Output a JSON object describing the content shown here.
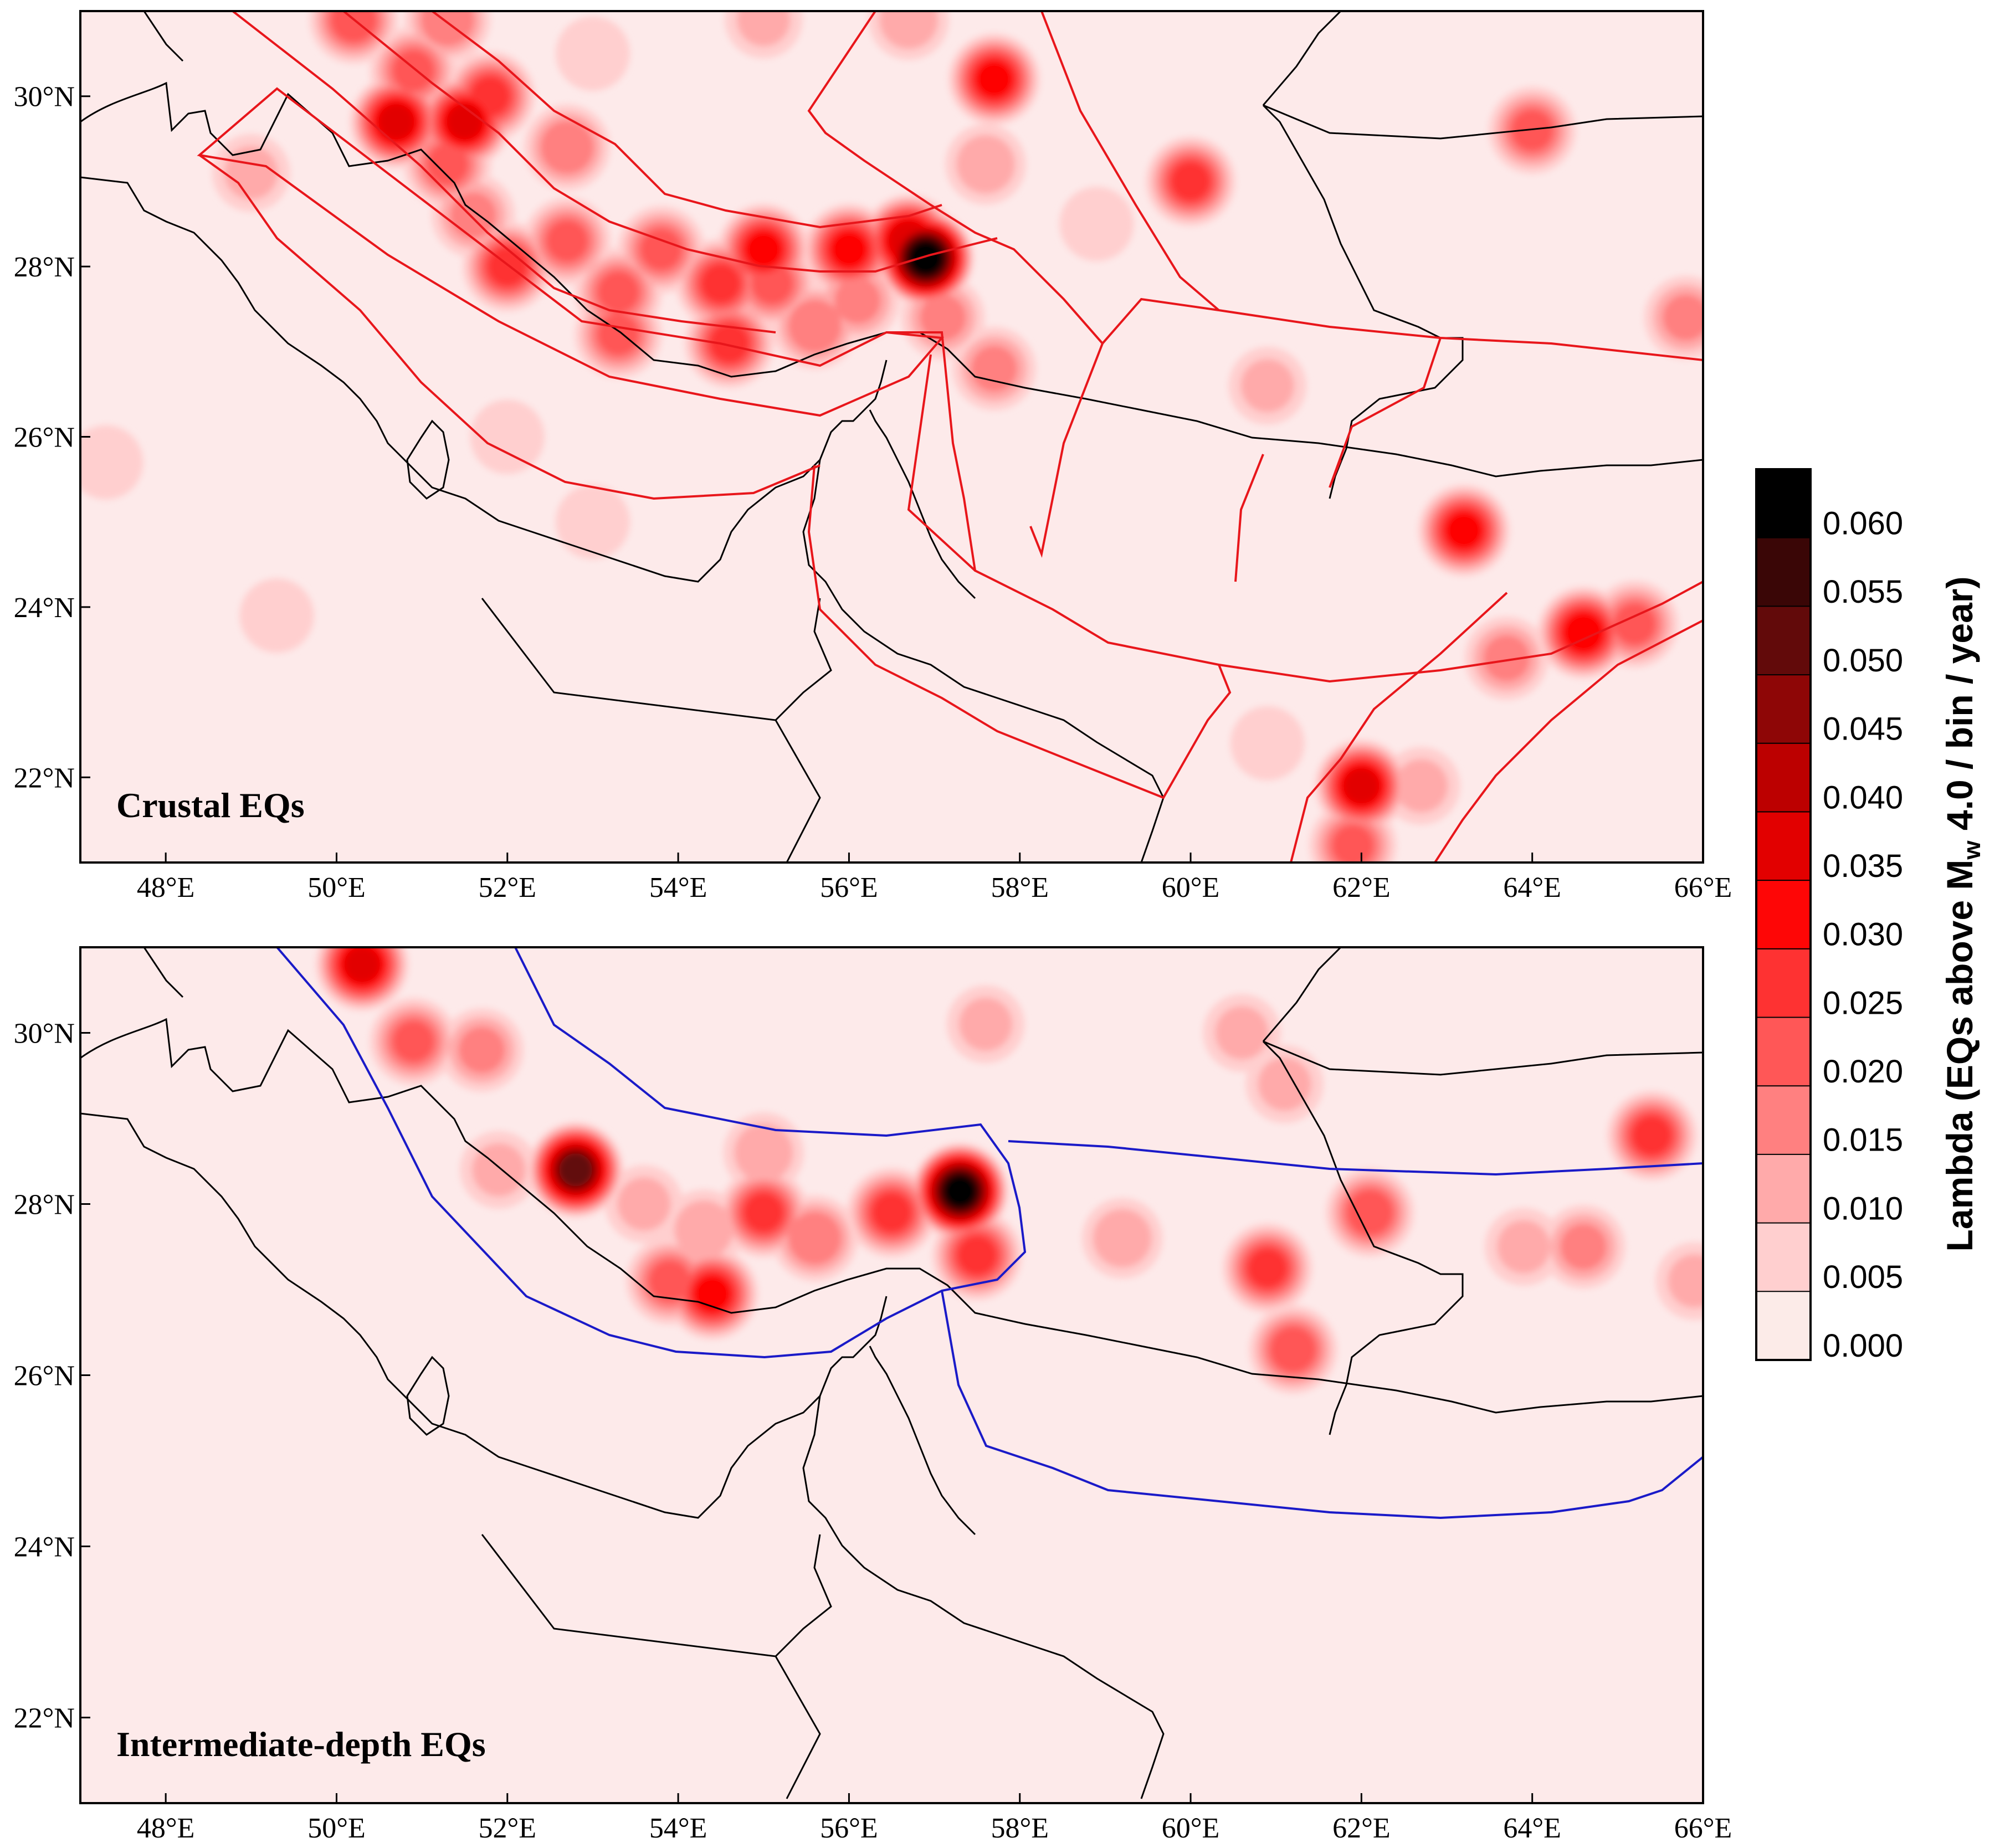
{
  "panels": [
    {
      "title": "Crustal EQs",
      "zone_color": "#e8161b"
    },
    {
      "title": "Intermediate-depth EQs",
      "zone_color": "#1a1ac8"
    }
  ],
  "axes": {
    "x_ticks": [
      "48°E",
      "50°E",
      "52°E",
      "54°E",
      "56°E",
      "58°E",
      "60°E",
      "62°E",
      "64°E",
      "66°E"
    ],
    "y_ticks": [
      "30°N",
      "28°N",
      "26°N",
      "24°N",
      "22°N"
    ]
  },
  "colorbar": {
    "title_prefix": "Lambda (EQs above M",
    "title_sub": "w",
    "title_suffix": " 4.0 / bin / year)",
    "tick_labels": [
      "0.060",
      "0.055",
      "0.050",
      "0.045",
      "0.040",
      "0.035",
      "0.030",
      "0.025",
      "0.020",
      "0.015",
      "0.010",
      "0.005",
      "0.000"
    ],
    "colors": [
      "#000000",
      "#3a0606",
      "#620a0a",
      "#8e0606",
      "#bc0000",
      "#e20000",
      "#fe0606",
      "#fe3232",
      "#ff5757",
      "#ff8080",
      "#ffaaaa",
      "#ffcfcf",
      "#fcebe8"
    ]
  },
  "map_background": "#fdeaea",
  "coast_color": "#000000",
  "hotspots": {
    "crustal": [
      {
        "lon": 56.9,
        "lat": 28.1,
        "val": 0.062
      },
      {
        "lon": 56.7,
        "lat": 28.3,
        "val": 0.038
      },
      {
        "lon": 55.0,
        "lat": 28.2,
        "val": 0.03
      },
      {
        "lon": 56.0,
        "lat": 28.2,
        "val": 0.03
      },
      {
        "lon": 54.5,
        "lat": 27.8,
        "val": 0.025
      },
      {
        "lon": 53.8,
        "lat": 28.2,
        "val": 0.02
      },
      {
        "lon": 53.3,
        "lat": 27.7,
        "val": 0.02
      },
      {
        "lon": 52.7,
        "lat": 28.3,
        "val": 0.02
      },
      {
        "lon": 52.0,
        "lat": 28.0,
        "val": 0.025
      },
      {
        "lon": 54.6,
        "lat": 27.1,
        "val": 0.025
      },
      {
        "lon": 53.3,
        "lat": 27.2,
        "val": 0.02
      },
      {
        "lon": 55.6,
        "lat": 27.3,
        "val": 0.018
      },
      {
        "lon": 55.1,
        "lat": 27.8,
        "val": 0.02
      },
      {
        "lon": 56.1,
        "lat": 27.6,
        "val": 0.015
      },
      {
        "lon": 51.5,
        "lat": 29.7,
        "val": 0.035
      },
      {
        "lon": 50.7,
        "lat": 29.7,
        "val": 0.035
      },
      {
        "lon": 51.8,
        "lat": 30.0,
        "val": 0.025
      },
      {
        "lon": 50.9,
        "lat": 30.3,
        "val": 0.02
      },
      {
        "lon": 51.3,
        "lat": 29.2,
        "val": 0.02
      },
      {
        "lon": 52.7,
        "lat": 29.4,
        "val": 0.018
      },
      {
        "lon": 50.2,
        "lat": 30.9,
        "val": 0.022
      },
      {
        "lon": 51.3,
        "lat": 30.9,
        "val": 0.018
      },
      {
        "lon": 51.6,
        "lat": 28.6,
        "val": 0.015
      },
      {
        "lon": 57.7,
        "lat": 30.2,
        "val": 0.03
      },
      {
        "lon": 57.6,
        "lat": 29.2,
        "val": 0.012
      },
      {
        "lon": 60.0,
        "lat": 29.0,
        "val": 0.025
      },
      {
        "lon": 62.0,
        "lat": 21.9,
        "val": 0.035
      },
      {
        "lon": 61.9,
        "lat": 21.2,
        "val": 0.02
      },
      {
        "lon": 63.2,
        "lat": 24.9,
        "val": 0.03
      },
      {
        "lon": 64.6,
        "lat": 23.7,
        "val": 0.032
      },
      {
        "lon": 65.2,
        "lat": 23.8,
        "val": 0.02
      },
      {
        "lon": 63.7,
        "lat": 23.4,
        "val": 0.015
      },
      {
        "lon": 64.0,
        "lat": 29.6,
        "val": 0.02
      },
      {
        "lon": 65.8,
        "lat": 27.4,
        "val": 0.015
      },
      {
        "lon": 57.7,
        "lat": 26.8,
        "val": 0.015
      },
      {
        "lon": 57.1,
        "lat": 27.4,
        "val": 0.015
      },
      {
        "lon": 49.0,
        "lat": 29.1,
        "val": 0.01
      },
      {
        "lon": 47.3,
        "lat": 25.7,
        "val": 0.008
      },
      {
        "lon": 49.3,
        "lat": 23.9,
        "val": 0.008
      },
      {
        "lon": 52.0,
        "lat": 26.0,
        "val": 0.008
      },
      {
        "lon": 53.0,
        "lat": 25.0,
        "val": 0.008
      },
      {
        "lon": 58.9,
        "lat": 28.5,
        "val": 0.008
      },
      {
        "lon": 60.9,
        "lat": 26.6,
        "val": 0.01
      },
      {
        "lon": 62.7,
        "lat": 21.9,
        "val": 0.01
      },
      {
        "lon": 60.9,
        "lat": 22.4,
        "val": 0.008
      },
      {
        "lon": 56.7,
        "lat": 30.9,
        "val": 0.012
      },
      {
        "lon": 55.0,
        "lat": 30.9,
        "val": 0.01
      },
      {
        "lon": 53.0,
        "lat": 30.5,
        "val": 0.008
      }
    ],
    "intermediate": [
      {
        "lon": 57.3,
        "lat": 28.15,
        "val": 0.06
      },
      {
        "lon": 52.8,
        "lat": 28.4,
        "val": 0.05
      },
      {
        "lon": 56.5,
        "lat": 27.9,
        "val": 0.025
      },
      {
        "lon": 54.4,
        "lat": 26.95,
        "val": 0.03
      },
      {
        "lon": 53.9,
        "lat": 27.1,
        "val": 0.02
      },
      {
        "lon": 55.0,
        "lat": 27.9,
        "val": 0.025
      },
      {
        "lon": 55.6,
        "lat": 27.6,
        "val": 0.018
      },
      {
        "lon": 57.5,
        "lat": 27.4,
        "val": 0.025
      },
      {
        "lon": 50.3,
        "lat": 30.8,
        "val": 0.035
      },
      {
        "lon": 50.9,
        "lat": 29.9,
        "val": 0.02
      },
      {
        "lon": 51.7,
        "lat": 29.8,
        "val": 0.015
      },
      {
        "lon": 60.9,
        "lat": 27.25,
        "val": 0.025
      },
      {
        "lon": 61.2,
        "lat": 26.3,
        "val": 0.022
      },
      {
        "lon": 62.1,
        "lat": 27.9,
        "val": 0.022
      },
      {
        "lon": 65.4,
        "lat": 28.8,
        "val": 0.025
      },
      {
        "lon": 64.6,
        "lat": 27.5,
        "val": 0.015
      },
      {
        "lon": 59.2,
        "lat": 27.6,
        "val": 0.012
      },
      {
        "lon": 54.3,
        "lat": 27.7,
        "val": 0.012
      },
      {
        "lon": 53.6,
        "lat": 28.0,
        "val": 0.01
      },
      {
        "lon": 55.0,
        "lat": 28.6,
        "val": 0.012
      },
      {
        "lon": 57.6,
        "lat": 30.1,
        "val": 0.01
      },
      {
        "lon": 60.6,
        "lat": 30.0,
        "val": 0.01
      },
      {
        "lon": 61.1,
        "lat": 29.4,
        "val": 0.01
      },
      {
        "lon": 51.9,
        "lat": 28.4,
        "val": 0.01
      },
      {
        "lon": 63.9,
        "lat": 27.5,
        "val": 0.01
      },
      {
        "lon": 65.9,
        "lat": 27.1,
        "val": 0.01
      }
    ]
  }
}
